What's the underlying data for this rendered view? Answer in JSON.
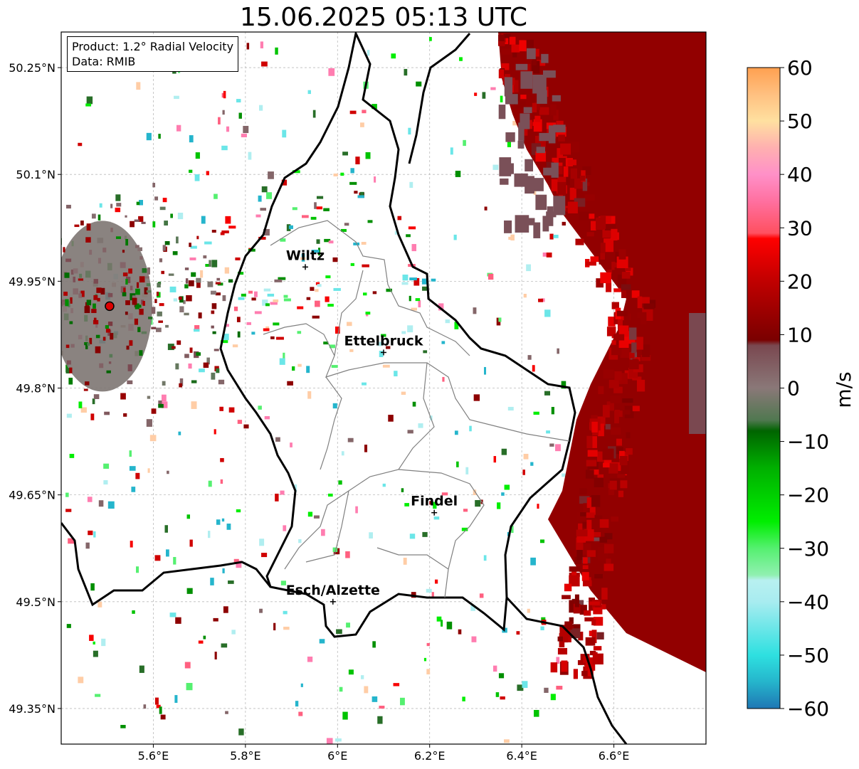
{
  "title": "15.06.2025 05:13 UTC",
  "info": {
    "product": "Product: 1.2° Radial Velocity",
    "data": "Data: RMIB"
  },
  "map": {
    "lon_range": [
      5.4,
      6.8
    ],
    "lat_range": [
      49.3,
      50.3
    ],
    "x_ticks": [
      {
        "value": 5.6,
        "label": "5.6°E"
      },
      {
        "value": 5.8,
        "label": "5.8°E"
      },
      {
        "value": 6.0,
        "label": "6°E"
      },
      {
        "value": 6.2,
        "label": "6.2°E"
      },
      {
        "value": 6.4,
        "label": "6.4°E"
      },
      {
        "value": 6.6,
        "label": "6.6°E"
      }
    ],
    "y_ticks": [
      {
        "value": 50.25,
        "label": "50.25°N"
      },
      {
        "value": 50.1,
        "label": "50.1°N"
      },
      {
        "value": 49.95,
        "label": "49.95°N"
      },
      {
        "value": 49.8,
        "label": "49.8°N"
      },
      {
        "value": 49.65,
        "label": "49.65°N"
      },
      {
        "value": 49.5,
        "label": "49.5°N"
      },
      {
        "value": 49.35,
        "label": "49.35°N"
      }
    ],
    "radar_site": {
      "lon": 5.505,
      "lat": 49.915
    },
    "cities": [
      {
        "name": "Wiltz",
        "lon": 5.93,
        "lat": 49.97
      },
      {
        "name": "Ettelbruck",
        "lon": 6.1,
        "lat": 49.85
      },
      {
        "name": "Findel",
        "lon": 6.21,
        "lat": 49.625
      },
      {
        "name": "Esch/Alzette",
        "lon": 5.99,
        "lat": 49.5
      }
    ]
  },
  "colorbar": {
    "unit": "m/s",
    "range": [
      -60,
      60
    ],
    "ticks": [
      {
        "value": 60,
        "label": "60"
      },
      {
        "value": 50,
        "label": "50"
      },
      {
        "value": 40,
        "label": "40"
      },
      {
        "value": 30,
        "label": "30"
      },
      {
        "value": 20,
        "label": "20"
      },
      {
        "value": 10,
        "label": "10"
      },
      {
        "value": 0,
        "label": "0"
      },
      {
        "value": -10,
        "label": "−10"
      },
      {
        "value": -20,
        "label": "−20"
      },
      {
        "value": -30,
        "label": "−30"
      },
      {
        "value": -40,
        "label": "−40"
      },
      {
        "value": -50,
        "label": "−50"
      },
      {
        "value": -60,
        "label": "−60"
      }
    ],
    "stops": [
      {
        "value": -60,
        "color": "#1f77b4"
      },
      {
        "value": -55,
        "color": "#25b5cc"
      },
      {
        "value": -50,
        "color": "#2ee0e0"
      },
      {
        "value": -40,
        "color": "#a8ecf0"
      },
      {
        "value": -36,
        "color": "#b8f0f0"
      },
      {
        "value": -35,
        "color": "#90f0b0"
      },
      {
        "value": -30,
        "color": "#55f070"
      },
      {
        "value": -25,
        "color": "#00ee00"
      },
      {
        "value": -15,
        "color": "#00b000"
      },
      {
        "value": -8,
        "color": "#006400"
      },
      {
        "value": -6,
        "color": "#507850"
      },
      {
        "value": 0,
        "color": "#8a7878"
      },
      {
        "value": 8,
        "color": "#7a4850"
      },
      {
        "value": 9,
        "color": "#7a0000"
      },
      {
        "value": 20,
        "color": "#c00000"
      },
      {
        "value": 28,
        "color": "#ff0000"
      },
      {
        "value": 29,
        "color": "#ff5060"
      },
      {
        "value": 35,
        "color": "#ff70a0"
      },
      {
        "value": 40,
        "color": "#ff90c8"
      },
      {
        "value": 45,
        "color": "#ffb0b0"
      },
      {
        "value": 50,
        "color": "#ffe0a0"
      },
      {
        "value": 55,
        "color": "#ffc080"
      },
      {
        "value": 60,
        "color": "#ffa050"
      }
    ]
  }
}
